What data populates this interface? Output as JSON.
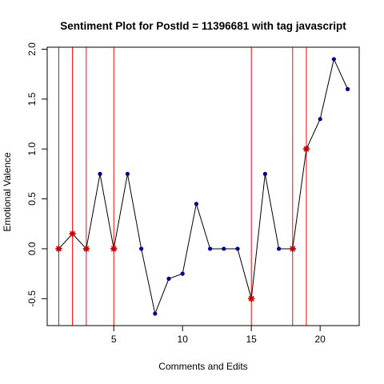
{
  "chart_data": {
    "type": "line",
    "title": "Sentiment Plot for PostId =  11396681  with tag  javascript",
    "xlabel": "Comments and Edits",
    "ylabel": "Emotional Valence",
    "xlim": [
      0.16,
      22.84
    ],
    "ylim": [
      -0.77,
      2.02
    ],
    "x_ticks": [
      5,
      10,
      15,
      20
    ],
    "x_tick_labels": [
      "5",
      "10",
      "15",
      "20"
    ],
    "y_ticks": [
      -0.5,
      0.0,
      0.5,
      1.0,
      1.5,
      2.0
    ],
    "y_tick_labels": [
      "-0.5",
      "0.0",
      "0.5",
      "1.0",
      "1.5",
      "2.0"
    ],
    "grid": false,
    "series": [
      {
        "x": [
          1,
          2,
          3,
          4,
          5,
          6,
          7,
          8,
          9,
          10,
          11,
          12,
          13,
          14,
          15,
          16,
          17,
          18,
          19,
          20,
          21,
          22
        ],
        "values": [
          0.0,
          0.15,
          0.0,
          0.75,
          0.0,
          0.75,
          0.0,
          -0.65,
          -0.3,
          -0.25,
          0.45,
          0.0,
          0.0,
          0.0,
          -0.5,
          0.75,
          0.0,
          0.0,
          1.0,
          1.3,
          1.9,
          1.6
        ],
        "line_color": "#000000",
        "point_color": "#00008b"
      }
    ],
    "edit_markers": {
      "x": [
        1,
        2,
        3,
        5,
        15,
        18,
        19
      ],
      "line_color": "#ff0000",
      "marker_color": "#cc0000"
    }
  }
}
